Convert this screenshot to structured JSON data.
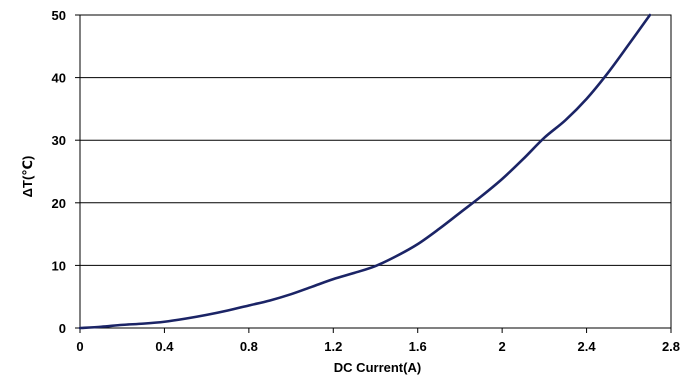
{
  "chart_data": {
    "type": "line",
    "title": "",
    "xlabel": "DC Current(A)",
    "ylabel": "ΔT(℃)",
    "xlim": [
      0,
      2.8
    ],
    "ylim": [
      0,
      50
    ],
    "x_ticks": [
      0,
      0.4,
      0.8,
      1.2,
      1.6,
      2,
      2.4,
      2.8
    ],
    "x_tick_labels": [
      "0",
      "0.4",
      "0.8",
      "1.2",
      "1.6",
      "2",
      "2.4",
      "2.8"
    ],
    "y_ticks": [
      0,
      10,
      20,
      30,
      40,
      50
    ],
    "y_tick_labels": [
      "0",
      "10",
      "20",
      "30",
      "40",
      "50"
    ],
    "grid": "horizontal",
    "legend": "none",
    "series": [
      {
        "color": "#1b2466",
        "x": [
          0,
          0.1,
          0.2,
          0.3,
          0.4,
          0.5,
          0.6,
          0.7,
          0.8,
          0.9,
          1.0,
          1.1,
          1.2,
          1.3,
          1.4,
          1.5,
          1.6,
          1.7,
          1.8,
          1.9,
          2.0,
          2.1,
          2.2,
          2.3,
          2.4,
          2.5,
          2.6,
          2.7
        ],
        "y": [
          0,
          0.2,
          0.5,
          0.7,
          1.0,
          1.5,
          2.1,
          2.8,
          3.6,
          4.4,
          5.4,
          6.6,
          7.8,
          8.8,
          9.9,
          11.5,
          13.4,
          15.8,
          18.4,
          21.0,
          23.8,
          27.0,
          30.4,
          33.2,
          36.6,
          40.7,
          45.3,
          50.0
        ]
      }
    ]
  }
}
